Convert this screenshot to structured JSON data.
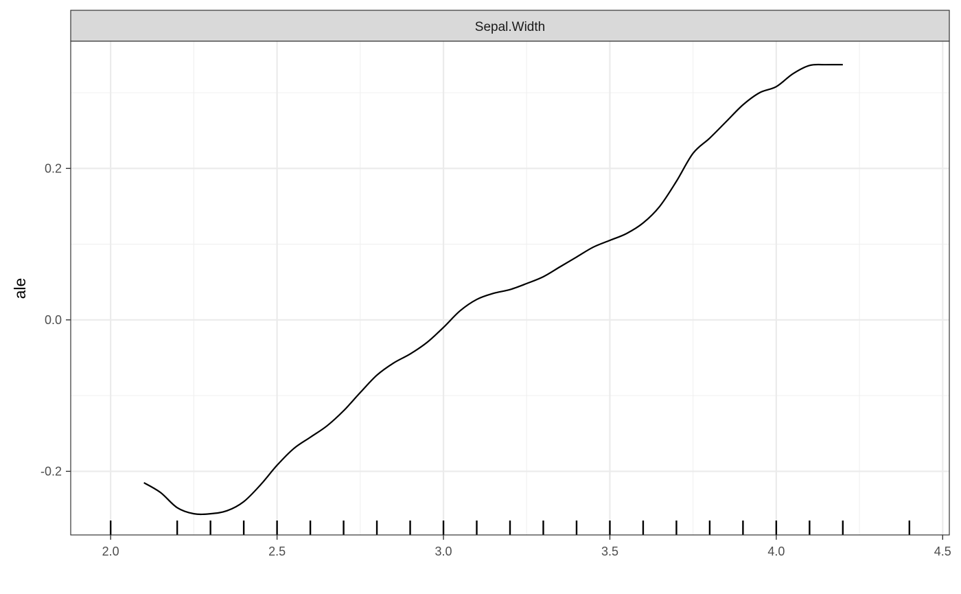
{
  "chart_data": {
    "type": "line",
    "facet_label": "Sepal.Width",
    "xlabel": "",
    "ylabel": "ale",
    "xlim": [
      1.88,
      4.52
    ],
    "ylim": [
      -0.284,
      0.368
    ],
    "x_ticks": [
      2.0,
      2.5,
      3.0,
      3.5,
      4.0,
      4.5
    ],
    "x_tick_labels": [
      "2.0",
      "2.5",
      "3.0",
      "3.5",
      "4.0",
      "4.5"
    ],
    "y_ticks": [
      -0.2,
      0.0,
      0.2
    ],
    "y_tick_labels": [
      "-0.2",
      "0.0",
      "0.2"
    ],
    "grid": true,
    "series": [
      {
        "x": [
          2.1,
          2.15,
          2.2,
          2.25,
          2.3,
          2.35,
          2.4,
          2.45,
          2.5,
          2.55,
          2.6,
          2.65,
          2.7,
          2.75,
          2.8,
          2.85,
          2.9,
          2.95,
          3.0,
          3.05,
          3.1,
          3.15,
          3.2,
          3.25,
          3.3,
          3.35,
          3.4,
          3.45,
          3.5,
          3.55,
          3.6,
          3.65,
          3.7,
          3.75,
          3.8,
          3.85,
          3.9,
          3.95,
          4.0,
          4.05,
          4.1,
          4.15,
          4.2
        ],
        "y": [
          -0.215,
          -0.228,
          -0.248,
          -0.256,
          -0.256,
          -0.252,
          -0.24,
          -0.218,
          -0.192,
          -0.17,
          -0.155,
          -0.14,
          -0.12,
          -0.096,
          -0.073,
          -0.057,
          -0.045,
          -0.03,
          -0.01,
          0.012,
          0.027,
          0.035,
          0.04,
          0.048,
          0.057,
          0.07,
          0.083,
          0.096,
          0.105,
          0.114,
          0.128,
          0.15,
          0.183,
          0.22,
          0.24,
          0.262,
          0.284,
          0.3,
          0.308,
          0.325,
          0.336,
          0.337,
          0.337
        ]
      }
    ],
    "rug": [
      2.0,
      2.2,
      2.3,
      2.4,
      2.5,
      2.6,
      2.7,
      2.8,
      2.9,
      3.0,
      3.1,
      3.2,
      3.3,
      3.4,
      3.5,
      3.6,
      3.7,
      3.8,
      3.9,
      4.0,
      4.1,
      4.2,
      4.4
    ]
  }
}
